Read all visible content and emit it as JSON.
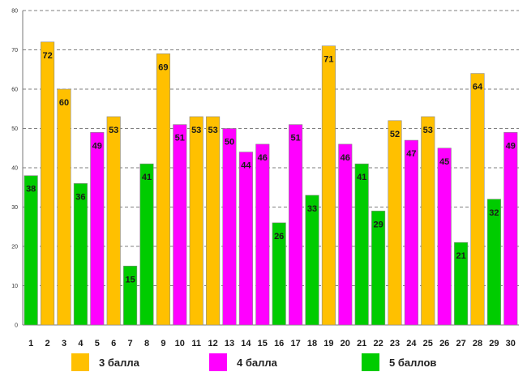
{
  "chart_data": {
    "type": "bar",
    "title": "",
    "xlabel": "",
    "ylabel": "",
    "ylim": [
      0,
      80
    ],
    "yticks": [
      0,
      10,
      20,
      30,
      40,
      50,
      60,
      70,
      80
    ],
    "categories": [
      "1",
      "2",
      "3",
      "4",
      "5",
      "6",
      "7",
      "8",
      "9",
      "10",
      "11",
      "12",
      "13",
      "14",
      "15",
      "16",
      "17",
      "18",
      "19",
      "20",
      "21",
      "22",
      "23",
      "24",
      "25",
      "26",
      "27",
      "28",
      "29",
      "30"
    ],
    "values": [
      38,
      72,
      60,
      36,
      49,
      53,
      15,
      41,
      69,
      51,
      53,
      53,
      50,
      44,
      46,
      26,
      51,
      33,
      71,
      46,
      41,
      29,
      52,
      47,
      53,
      45,
      21,
      64,
      32,
      49
    ],
    "groups": [
      "5",
      "3",
      "3",
      "5",
      "4",
      "3",
      "5",
      "5",
      "3",
      "4",
      "3",
      "3",
      "4",
      "4",
      "4",
      "5",
      "4",
      "5",
      "3",
      "4",
      "5",
      "5",
      "3",
      "4",
      "3",
      "4",
      "5",
      "3",
      "5",
      "4"
    ],
    "grid": true,
    "legend_position": "bottom",
    "legend": [
      {
        "key": "3",
        "label": "3 балла",
        "color": "#FFC000"
      },
      {
        "key": "4",
        "label": "4 балла",
        "color": "#FF00FF"
      },
      {
        "key": "5",
        "label": "5 баллов",
        "color": "#00CC00"
      }
    ]
  }
}
